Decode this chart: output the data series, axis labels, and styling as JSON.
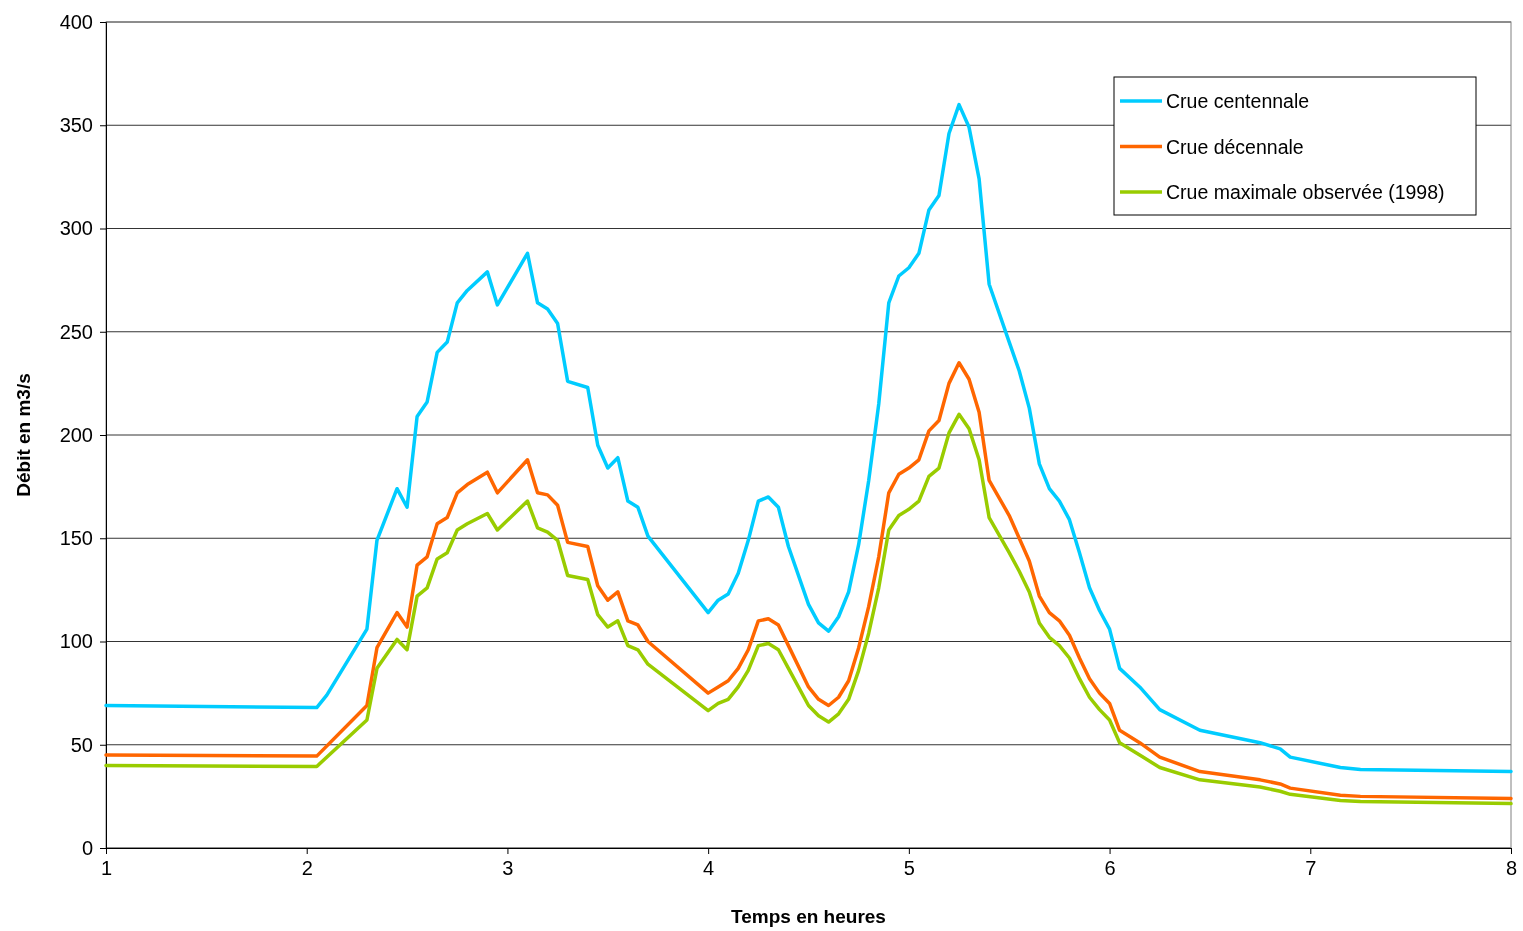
{
  "chart_data": {
    "type": "line",
    "xlabel": "Temps en heures",
    "ylabel": "Débit en m3/s",
    "x": [
      1,
      2.05,
      2.3,
      2.35,
      2.45,
      2.5,
      2.55,
      2.6,
      2.65,
      2.7,
      2.75,
      2.8,
      2.9,
      2.95,
      3.1,
      3.15,
      3.2,
      3.25,
      3.3,
      3.4,
      3.45,
      3.5,
      3.55,
      3.6,
      3.65,
      3.7,
      4,
      4.05,
      4.1,
      4.15,
      4.2,
      4.25,
      4.3,
      4.35,
      4.4,
      4.5,
      4.55,
      4.6,
      4.65,
      4.7,
      4.75,
      4.8,
      4.85,
      4.9,
      4.95,
      5,
      5.05,
      5.1,
      5.15,
      5.2,
      5.25,
      5.3,
      5.35,
      5.4,
      5.5,
      5.55,
      5.6,
      5.65,
      5.7,
      5.75,
      5.8,
      5.85,
      5.9,
      5.95,
      6,
      6.05,
      6.15,
      6.25,
      6.45,
      6.75,
      6.85,
      6.9,
      7.15,
      7.25,
      8
    ],
    "series": [
      {
        "name": "Crue centennale",
        "color": "#00ccff",
        "x": [
          1,
          2.05,
          2.1,
          2.3,
          2.35,
          2.45,
          2.5,
          2.55,
          2.6,
          2.65,
          2.7,
          2.75,
          2.8,
          2.9,
          2.95,
          3.1,
          3.15,
          3.2,
          3.25,
          3.3,
          3.4,
          3.45,
          3.5,
          3.55,
          3.6,
          3.65,
          3.7,
          4,
          4.05,
          4.1,
          4.15,
          4.2,
          4.25,
          4.3,
          4.35,
          4.4,
          4.5,
          4.55,
          4.6,
          4.65,
          4.7,
          4.75,
          4.8,
          4.85,
          4.9,
          4.95,
          5,
          5.05,
          5.1,
          5.15,
          5.2,
          5.25,
          5.3,
          5.35,
          5.4,
          5.5,
          5.55,
          5.6,
          5.65,
          5.7,
          5.75,
          5.8,
          5.85,
          5.9,
          5.95,
          6,
          6.05,
          6.15,
          6.25,
          6.45,
          6.75,
          6.85,
          6.9,
          7.15,
          7.25,
          8
        ],
        "values": [
          69,
          68,
          74,
          106,
          149,
          174,
          165,
          209,
          216,
          240,
          245,
          264,
          270,
          279,
          263,
          288,
          264,
          261,
          254,
          226,
          223,
          195,
          184,
          189,
          168,
          165,
          151,
          114,
          120,
          123,
          133,
          149,
          168,
          170,
          165,
          146,
          118,
          109,
          105,
          112,
          124,
          147,
          178,
          215,
          264,
          277,
          281,
          288,
          309,
          316,
          346,
          360,
          349,
          324,
          273,
          245,
          231,
          213,
          186,
          174,
          168,
          159,
          143,
          126,
          115,
          106,
          87,
          78,
          67,
          57,
          51,
          48,
          44,
          39,
          38,
          37
        ]
      },
      {
        "name": "Crue décennale",
        "color": "#ff6600",
        "values": [
          45,
          44.5,
          69,
          97,
          114,
          107,
          137,
          141,
          157,
          160,
          172,
          176,
          182,
          172,
          188,
          172,
          171,
          166,
          148,
          146,
          127,
          120,
          124,
          110,
          108,
          100,
          75,
          78,
          81,
          87,
          96,
          110,
          111,
          108,
          98,
          78,
          72,
          69,
          73,
          81,
          97,
          117,
          141,
          172,
          181,
          184,
          188,
          202,
          207,
          225,
          235,
          227,
          211,
          178,
          161,
          150,
          139,
          122,
          114,
          110,
          103,
          92,
          82,
          75,
          70,
          57,
          51,
          44,
          37,
          33,
          31,
          29,
          25.5,
          25,
          24
        ]
      },
      {
        "name": "Crue maximale observée (1998)",
        "color": "#99cc00",
        "values": [
          40,
          39.5,
          62,
          87,
          101,
          96,
          122,
          126,
          140,
          143,
          154,
          157,
          162,
          154,
          168,
          155,
          153,
          149,
          132,
          130,
          113,
          107,
          110,
          98,
          96,
          89,
          66.5,
          70,
          72,
          78,
          86,
          98,
          99,
          96,
          87,
          69,
          64,
          61,
          65,
          72,
          86,
          104,
          126,
          154,
          161,
          164,
          168,
          180,
          184,
          201,
          210,
          203,
          188,
          160,
          143,
          134,
          124,
          109,
          102,
          98,
          92,
          82,
          73,
          67,
          62,
          51,
          45,
          39,
          33,
          29.5,
          27.5,
          26,
          23,
          22.5,
          21.5
        ]
      }
    ],
    "xlim": [
      1,
      8
    ],
    "xticks": [
      1,
      2,
      3,
      4,
      5,
      6,
      7,
      8
    ],
    "ylim": [
      0,
      400
    ],
    "yticks": [
      0,
      50,
      100,
      150,
      200,
      250,
      300,
      350,
      400
    ],
    "grid": "y",
    "legend": "top right",
    "marker": "none",
    "line_style": "solid"
  }
}
